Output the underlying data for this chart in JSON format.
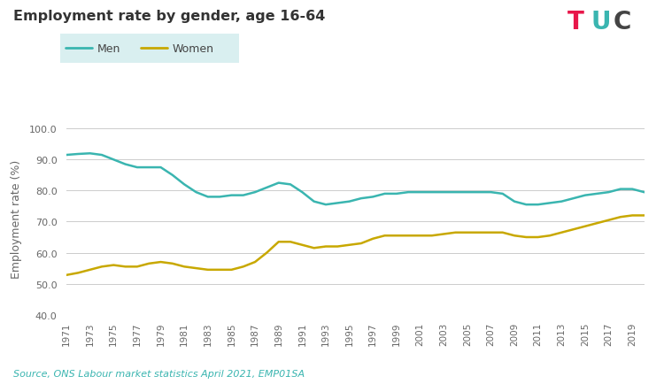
{
  "title": "Employment rate by gender, age 16-64",
  "source_text": "Source, ONS Labour market statistics April 2021, EMP01SA",
  "ylabel": "Employment rate (%)",
  "ylim": [
    40.0,
    102.0
  ],
  "yticks": [
    40.0,
    50.0,
    60.0,
    70.0,
    80.0,
    90.0,
    100.0
  ],
  "background_color": "#ffffff",
  "men_color": "#3ab5b0",
  "women_color": "#c8a800",
  "legend_bg": "#d9eff0",
  "years": [
    1971,
    1972,
    1973,
    1974,
    1975,
    1976,
    1977,
    1978,
    1979,
    1980,
    1981,
    1982,
    1983,
    1984,
    1985,
    1986,
    1987,
    1988,
    1989,
    1990,
    1991,
    1992,
    1993,
    1994,
    1995,
    1996,
    1997,
    1998,
    1999,
    2000,
    2001,
    2002,
    2003,
    2004,
    2005,
    2006,
    2007,
    2008,
    2009,
    2010,
    2011,
    2012,
    2013,
    2014,
    2015,
    2016,
    2017,
    2018,
    2019,
    2020
  ],
  "men": [
    91.5,
    91.8,
    92.0,
    91.5,
    90.0,
    88.5,
    87.5,
    87.5,
    87.5,
    85.0,
    82.0,
    79.5,
    78.0,
    78.0,
    78.5,
    78.5,
    79.5,
    81.0,
    82.5,
    82.0,
    79.5,
    76.5,
    75.5,
    76.0,
    76.5,
    77.5,
    78.0,
    79.0,
    79.0,
    79.5,
    79.5,
    79.5,
    79.5,
    79.5,
    79.5,
    79.5,
    79.5,
    79.0,
    76.5,
    75.5,
    75.5,
    76.0,
    76.5,
    77.5,
    78.5,
    79.0,
    79.5,
    80.5,
    80.5,
    79.5
  ],
  "women": [
    52.8,
    53.5,
    54.5,
    55.5,
    56.0,
    55.5,
    55.5,
    56.5,
    57.0,
    56.5,
    55.5,
    55.0,
    54.5,
    54.5,
    54.5,
    55.5,
    57.0,
    60.0,
    63.5,
    63.5,
    62.5,
    61.5,
    62.0,
    62.0,
    62.5,
    63.0,
    64.5,
    65.5,
    65.5,
    65.5,
    65.5,
    65.5,
    66.0,
    66.5,
    66.5,
    66.5,
    66.5,
    66.5,
    65.5,
    65.0,
    65.0,
    65.5,
    66.5,
    67.5,
    68.5,
    69.5,
    70.5,
    71.5,
    72.0,
    72.0
  ],
  "tuc_T_color": "#e8174a",
  "tuc_U_color": "#3ab5b0",
  "tuc_C_color": "#444444"
}
